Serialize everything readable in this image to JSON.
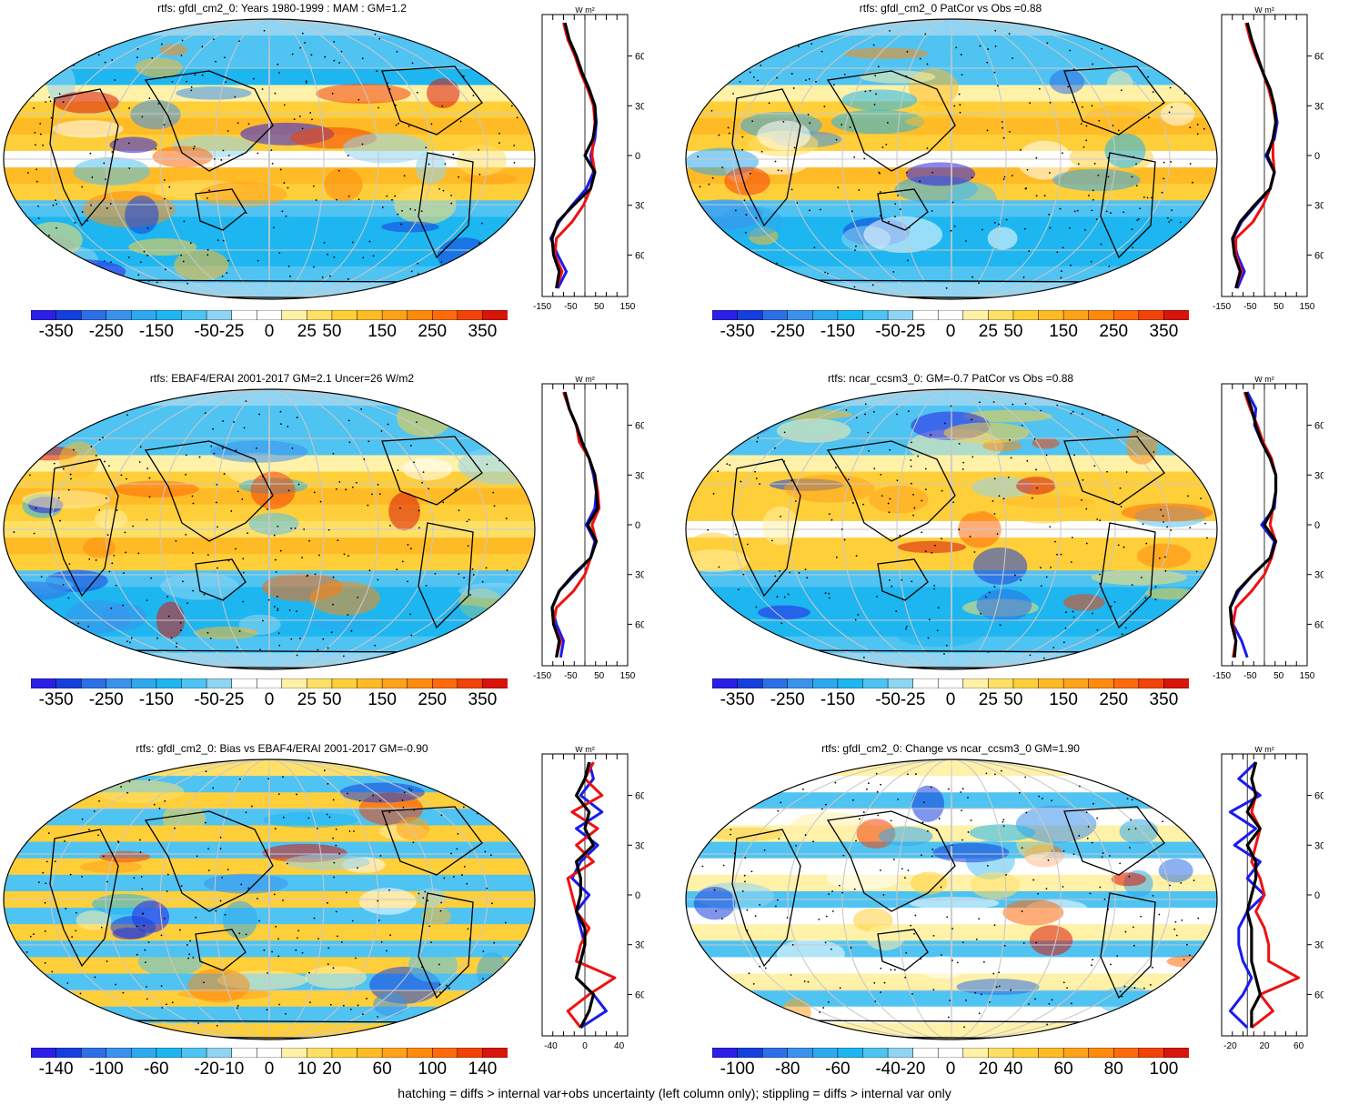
{
  "footer_note": "hatching = diffs > internal var+obs uncertainty (left column only); stippling = diffs > internal var only",
  "colors": {
    "scale": [
      "#2b1fe6",
      "#1640dd",
      "#2d6fe6",
      "#3a92ec",
      "#2ea9f0",
      "#1db6f0",
      "#4fc3f2",
      "#8fd5f3",
      "#ffffff",
      "#ffffff",
      "#fff1a8",
      "#ffe067",
      "#ffcf3a",
      "#ffbb26",
      "#ffa21a",
      "#ff8a0e",
      "#ff6a0a",
      "#f24208",
      "#d8150b"
    ],
    "obs_line": "#1a1aee",
    "model_line": "#ee1111",
    "other_line": "#000000",
    "continent": "#000000",
    "grid": "#c8c8c8"
  },
  "chart_data": [
    {
      "type": "heatmap",
      "title": "rtfs: gfdl_cm2_0: Years 1980-1999 : MAM : GM=1.2",
      "colorbar_labels": [
        "-350",
        "-250",
        "-150",
        "-50",
        "-25",
        "0",
        "25",
        "50",
        "150",
        "250",
        "350"
      ],
      "profile": {
        "units": "W m²",
        "lat_labels": [
          "60N",
          "30N",
          "0",
          "30S",
          "60S"
        ],
        "x_ticks": [
          "-150",
          "-50",
          "50",
          "150"
        ],
        "xlim": [
          -150,
          150
        ]
      },
      "zonal_mean": {
        "lat": [
          80,
          70,
          60,
          50,
          40,
          30,
          20,
          10,
          0,
          -10,
          -20,
          -30,
          -40,
          -50,
          -60,
          -70,
          -80
        ],
        "series": [
          {
            "values": [
              -70,
              -55,
              -30,
              -10,
              15,
              35,
              40,
              35,
              20,
              30,
              5,
              -45,
              -90,
              -120,
              -95,
              -65,
              -95
            ]
          },
          {
            "values": [
              -75,
              -60,
              -35,
              -15,
              10,
              30,
              35,
              30,
              25,
              35,
              20,
              -5,
              -45,
              -100,
              -105,
              -80,
              -100
            ]
          },
          {
            "values": [
              -70,
              -55,
              -30,
              -10,
              15,
              35,
              38,
              28,
              0,
              35,
              20,
              -40,
              -95,
              -115,
              -110,
              -90,
              -100
            ]
          }
        ]
      }
    },
    {
      "type": "heatmap",
      "title": "rtfs: gfdl_cm2_0 PatCor vs Obs =0.88",
      "colorbar_labels": [
        "-350",
        "-250",
        "-150",
        "-50",
        "-25",
        "0",
        "25",
        "50",
        "150",
        "250",
        "350"
      ],
      "profile": {
        "units": "W m²",
        "lat_labels": [
          "60N",
          "30N",
          "0",
          "30S",
          "60S"
        ],
        "x_ticks": [
          "-150",
          "-50",
          "50",
          "150"
        ],
        "xlim": [
          -150,
          150
        ]
      },
      "zonal_mean": {
        "lat": [
          80,
          70,
          60,
          50,
          40,
          30,
          20,
          10,
          0,
          -10,
          -20,
          -30,
          -40,
          -50,
          -60,
          -70,
          -80
        ],
        "series": [
          {
            "values": [
              -60,
              -45,
              -25,
              -5,
              20,
              35,
              45,
              35,
              5,
              35,
              20,
              -30,
              -80,
              -110,
              -95,
              -70,
              -95
            ]
          },
          {
            "values": [
              -65,
              -50,
              -30,
              -5,
              15,
              30,
              40,
              30,
              30,
              35,
              20,
              -5,
              -40,
              -100,
              -100,
              -80,
              -100
            ]
          },
          {
            "values": [
              -60,
              -45,
              -25,
              -5,
              20,
              35,
              40,
              30,
              10,
              35,
              20,
              -35,
              -85,
              -112,
              -105,
              -85,
              -100
            ]
          }
        ]
      }
    },
    {
      "type": "heatmap",
      "title": "rtfs: EBAF4/ERAI 2001-2017 GM=2.1 Uncer=26 W/m2",
      "colorbar_labels": [
        "-350",
        "-250",
        "-150",
        "-50",
        "-25",
        "0",
        "25",
        "50",
        "150",
        "250",
        "350"
      ],
      "profile": {
        "units": "W m²",
        "lat_labels": [
          "60N",
          "30N",
          "0",
          "30S",
          "60S"
        ],
        "x_ticks": [
          "-150",
          "-50",
          "50",
          "150"
        ],
        "xlim": [
          -150,
          150
        ]
      },
      "zonal_mean": {
        "lat": [
          80,
          70,
          60,
          50,
          40,
          30,
          20,
          10,
          0,
          -10,
          -20,
          -30,
          -40,
          -50,
          -60,
          -70,
          -80
        ],
        "series": [
          {
            "values": [
              -70,
              -55,
              -30,
              -10,
              15,
              30,
              40,
              35,
              5,
              35,
              20,
              -35,
              -90,
              -115,
              -100,
              -75,
              -85
            ]
          },
          {
            "values": [
              -75,
              -55,
              -30,
              -20,
              15,
              35,
              45,
              50,
              25,
              40,
              20,
              0,
              -40,
              -100,
              -110,
              -85,
              -100
            ]
          },
          {
            "values": [
              -70,
              -55,
              -30,
              -10,
              15,
              35,
              40,
              45,
              10,
              40,
              20,
              -40,
              -90,
              -115,
              -110,
              -90,
              -100
            ]
          }
        ]
      }
    },
    {
      "type": "heatmap",
      "title": "rtfs: ncar_ccsm3_0: GM=-0.7 PatCor vs Obs =0.88",
      "colorbar_labels": [
        "-350",
        "-250",
        "-150",
        "-50",
        "-25",
        "0",
        "25",
        "50",
        "150",
        "250",
        "350"
      ],
      "profile": {
        "units": "W m²",
        "lat_labels": [
          "60N",
          "30N",
          "0",
          "30S",
          "60S"
        ],
        "x_ticks": [
          "-150",
          "-50",
          "50",
          "150"
        ],
        "xlim": [
          -150,
          150
        ]
      },
      "zonal_mean": {
        "lat": [
          80,
          70,
          60,
          50,
          40,
          30,
          20,
          10,
          0,
          -10,
          -20,
          -30,
          -40,
          -50,
          -60,
          -70,
          -80
        ],
        "series": [
          {
            "values": [
              -60,
              -30,
              -35,
              -10,
              20,
              40,
              40,
              35,
              -10,
              35,
              20,
              -40,
              -90,
              -120,
              -110,
              -80,
              -60
            ]
          },
          {
            "values": [
              -70,
              -50,
              -25,
              -5,
              25,
              40,
              40,
              30,
              20,
              40,
              25,
              0,
              -45,
              -100,
              -110,
              -100,
              -110
            ]
          },
          {
            "values": [
              -65,
              -45,
              -30,
              -10,
              20,
              40,
              40,
              30,
              0,
              40,
              20,
              -40,
              -95,
              -120,
              -115,
              -100,
              -105
            ]
          }
        ]
      }
    },
    {
      "type": "heatmap",
      "title": "rtfs: gfdl_cm2_0: Bias vs EBAF4/ERAI 2001-2017 GM=-0.90",
      "colorbar_labels": [
        "-140",
        "-100",
        "-60",
        "-20",
        "-10",
        "0",
        "10",
        "20",
        "60",
        "100",
        "140"
      ],
      "profile": {
        "units": "W m²",
        "lat_labels": [
          "60N",
          "30N",
          "0",
          "30S",
          "60S"
        ],
        "x_ticks": [
          "-40",
          "0",
          "40"
        ],
        "xlim": [
          -50,
          50
        ]
      },
      "zonal_mean": {
        "lat": [
          80,
          70,
          60,
          50,
          40,
          30,
          20,
          10,
          0,
          -10,
          -20,
          -30,
          -40,
          -50,
          -60,
          -70,
          -80
        ],
        "series": [
          {
            "values": [
              5,
              10,
              -5,
              20,
              -10,
              15,
              -5,
              -15,
              5,
              -10,
              -5,
              0,
              -5,
              -10,
              10,
              25,
              -5
            ]
          },
          {
            "values": [
              10,
              0,
              20,
              -15,
              15,
              -10,
              10,
              -20,
              -15,
              -10,
              5,
              -5,
              -10,
              35,
              5,
              -20,
              -5
            ]
          },
          {
            "values": [
              5,
              0,
              -10,
              5,
              0,
              10,
              -10,
              -5,
              -5,
              -10,
              0,
              0,
              -5,
              -10,
              10,
              5,
              -5
            ]
          }
        ]
      }
    },
    {
      "type": "heatmap",
      "title": "rtfs: gfdl_cm2_0: Change vs ncar_ccsm3_0 GM=1.90",
      "colorbar_labels": [
        "-100",
        "-80",
        "-60",
        "-40",
        "-20",
        "0",
        "20",
        "40",
        "60",
        "80",
        "100"
      ],
      "profile": {
        "units": "W m²",
        "lat_labels": [
          "60N",
          "30N",
          "0",
          "30S",
          "60S"
        ],
        "x_ticks": [
          "-20",
          "20",
          "60"
        ],
        "xlim": [
          -30,
          70
        ]
      },
      "zonal_mean": {
        "lat": [
          80,
          70,
          60,
          50,
          40,
          30,
          20,
          10,
          0,
          -10,
          -20,
          -30,
          -40,
          -50,
          -60,
          -70,
          -80
        ],
        "series": [
          {
            "values": [
              10,
              -10,
              15,
              -20,
              10,
              -15,
              15,
              0,
              20,
              0,
              -10,
              -10,
              -5,
              5,
              -5,
              -20,
              0
            ]
          },
          {
            "values": [
              10,
              5,
              10,
              5,
              15,
              10,
              5,
              15,
              20,
              10,
              20,
              25,
              25,
              60,
              15,
              30,
              5
            ]
          },
          {
            "values": [
              10,
              5,
              10,
              0,
              15,
              0,
              10,
              10,
              5,
              0,
              5,
              5,
              5,
              10,
              15,
              5,
              5
            ]
          }
        ]
      }
    }
  ]
}
